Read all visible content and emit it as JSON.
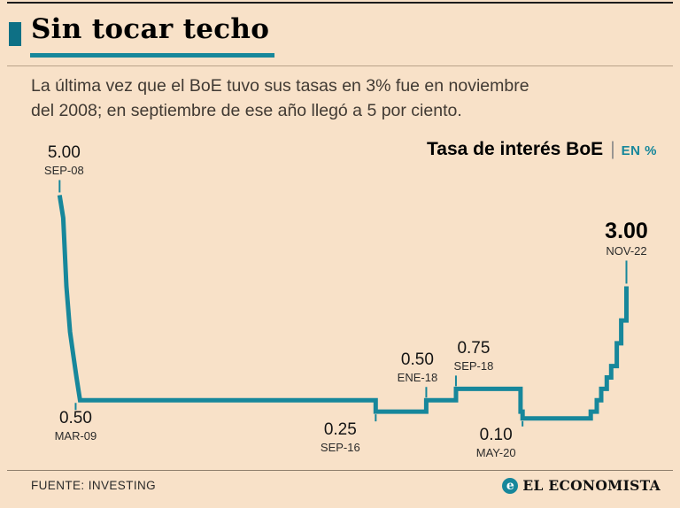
{
  "page": {
    "bg": "#f8e1c8",
    "accent": "#17879b",
    "accent_dark": "#0e7085"
  },
  "header": {
    "title": "Sin tocar techo",
    "subtitle_line1": "La última vez que el BoE tuvo sus tasas en 3% fue en noviembre",
    "subtitle_line2": "del 2008; en septiembre de ese año llegó a 5 por ciento."
  },
  "chart": {
    "title": "Tasa de interés BoE",
    "separator": "|",
    "unit": "EN %"
  },
  "chart_data": {
    "type": "line",
    "title": "Tasa de interés BoE",
    "ylabel": "EN %",
    "x_unit": "decimal_year",
    "xlim": [
      2008.45,
      2023.15
    ],
    "ylim": [
      0,
      5.3
    ],
    "line_color": "#17879b",
    "points": [
      [
        2008.7,
        5.0
      ],
      [
        2008.79,
        4.5
      ],
      [
        2008.87,
        3.0
      ],
      [
        2008.96,
        2.0
      ],
      [
        2009.04,
        1.5
      ],
      [
        2009.12,
        1.0
      ],
      [
        2009.21,
        0.5
      ],
      [
        2016.58,
        0.5
      ],
      [
        2016.58,
        0.25
      ],
      [
        2017.84,
        0.25
      ],
      [
        2017.84,
        0.5
      ],
      [
        2018.58,
        0.5
      ],
      [
        2018.58,
        0.75
      ],
      [
        2020.19,
        0.75
      ],
      [
        2020.19,
        0.25
      ],
      [
        2020.24,
        0.25
      ],
      [
        2020.24,
        0.1
      ],
      [
        2021.94,
        0.1
      ],
      [
        2021.94,
        0.25
      ],
      [
        2022.09,
        0.25
      ],
      [
        2022.09,
        0.5
      ],
      [
        2022.2,
        0.5
      ],
      [
        2022.2,
        0.75
      ],
      [
        2022.34,
        0.75
      ],
      [
        2022.34,
        1.0
      ],
      [
        2022.45,
        1.0
      ],
      [
        2022.45,
        1.25
      ],
      [
        2022.59,
        1.25
      ],
      [
        2022.59,
        1.75
      ],
      [
        2022.7,
        1.75
      ],
      [
        2022.7,
        2.25
      ],
      [
        2022.83,
        2.25
      ],
      [
        2022.83,
        3.0
      ]
    ],
    "annotations": [
      {
        "value": "5.00",
        "date": "SEP-08",
        "x": 2008.7,
        "v": 5.0,
        "side": "above",
        "tick": 14,
        "label_dx": 5,
        "bold": false
      },
      {
        "value": "0.50",
        "date": "MAR-09",
        "x": 2009.1,
        "v": 0.5,
        "side": "below",
        "tick": 8,
        "label_dx": 0,
        "bold": false
      },
      {
        "value": "0.25",
        "date": "SEP-16",
        "x": 2016.58,
        "v": 0.25,
        "side": "below",
        "tick": 8,
        "label_dx": -40,
        "bold": false
      },
      {
        "value": "0.50",
        "date": "ENE-18",
        "x": 2017.84,
        "v": 0.5,
        "side": "above",
        "tick": 12,
        "label_dx": -10,
        "bold": false
      },
      {
        "value": "0.75",
        "date": "SEP-18",
        "x": 2018.58,
        "v": 0.75,
        "side": "above",
        "tick": 12,
        "label_dx": 20,
        "bold": false
      },
      {
        "value": "0.10",
        "date": "MAY-20",
        "x": 2020.24,
        "v": 0.1,
        "side": "below",
        "tick": 6,
        "label_dx": -30,
        "bold": false
      },
      {
        "value": "3.00",
        "date": "NOV-22",
        "x": 2022.83,
        "v": 3.0,
        "side": "above",
        "tick": 26,
        "label_dx": 0,
        "bold": true
      }
    ]
  },
  "footer": {
    "source": "FUENTE: INVESTING",
    "brand": "EL ECONOMISTA",
    "brand_icon": "e"
  }
}
